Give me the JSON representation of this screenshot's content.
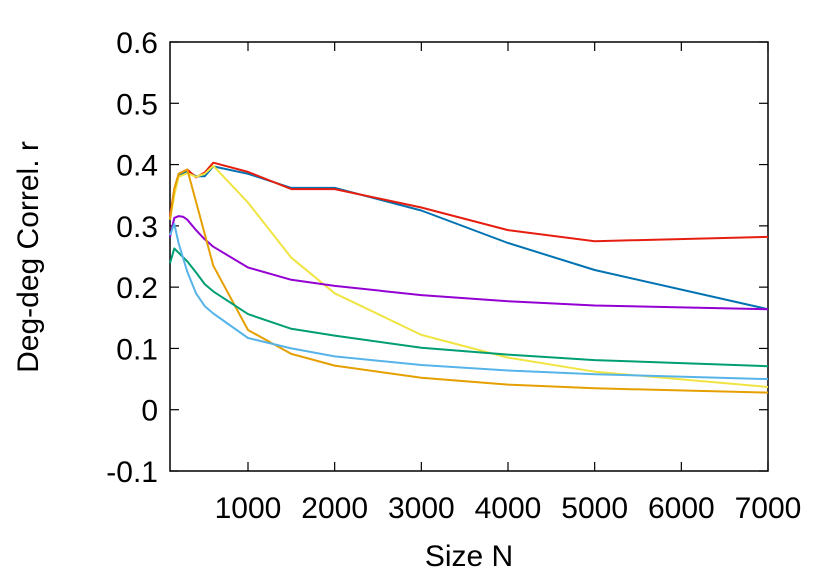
{
  "chart_data": {
    "type": "line",
    "xlabel": "Size N",
    "ylabel": "Deg-deg Correl. r",
    "xlim": [
      100,
      7000
    ],
    "ylim": [
      -0.1,
      0.6
    ],
    "x_ticks": [
      1000,
      2000,
      3000,
      4000,
      5000,
      6000,
      7000
    ],
    "y_ticks": [
      -0.1,
      0,
      0.1,
      0.2,
      0.3,
      0.4,
      0.5,
      0.6
    ],
    "y_tick_labels": [
      "-0.1",
      "0",
      "0.1",
      "0.2",
      "0.3",
      "0.4",
      "0.5",
      "0.6"
    ],
    "grid": false,
    "legend": "none",
    "series": [
      {
        "color": "#0072b2",
        "x": [
          100,
          150,
          200,
          300,
          400,
          500,
          600,
          1000,
          1500,
          2000,
          3000,
          4000,
          5000,
          7000
        ],
        "y": [
          0.315,
          0.355,
          0.383,
          0.388,
          0.381,
          0.381,
          0.397,
          0.385,
          0.362,
          0.362,
          0.325,
          0.272,
          0.228,
          0.164
        ]
      },
      {
        "color": "#e51e10",
        "x": [
          100,
          150,
          200,
          300,
          400,
          500,
          600,
          1000,
          1500,
          2000,
          3000,
          4000,
          5000,
          7000
        ],
        "y": [
          0.316,
          0.36,
          0.385,
          0.392,
          0.379,
          0.387,
          0.403,
          0.388,
          0.36,
          0.36,
          0.33,
          0.293,
          0.275,
          0.282
        ]
      },
      {
        "color": "#f0e442",
        "x": [
          100,
          150,
          200,
          300,
          400,
          500,
          600,
          1000,
          1500,
          2000,
          3000,
          4000,
          5000,
          7000
        ],
        "y": [
          0.31,
          0.35,
          0.38,
          0.386,
          0.38,
          0.385,
          0.398,
          0.338,
          0.248,
          0.19,
          0.122,
          0.085,
          0.062,
          0.037
        ]
      },
      {
        "color": "#9400d3",
        "x": [
          100,
          150,
          200,
          250,
          300,
          400,
          500,
          600,
          1000,
          1500,
          2000,
          3000,
          4000,
          5000,
          7000
        ],
        "y": [
          0.282,
          0.313,
          0.316,
          0.315,
          0.31,
          0.293,
          0.278,
          0.266,
          0.232,
          0.212,
          0.202,
          0.187,
          0.177,
          0.17,
          0.164
        ]
      },
      {
        "color": "#e69f00",
        "x": [
          100,
          150,
          200,
          300,
          600,
          1000,
          1500,
          2000,
          3000,
          4000,
          5000,
          7000
        ],
        "y": [
          0.31,
          0.36,
          0.385,
          0.392,
          0.235,
          0.13,
          0.091,
          0.072,
          0.052,
          0.041,
          0.035,
          0.028
        ]
      },
      {
        "color": "#009e73",
        "x": [
          100,
          150,
          200,
          300,
          400,
          500,
          600,
          1000,
          1500,
          2000,
          3000,
          4000,
          5000,
          7000
        ],
        "y": [
          0.239,
          0.263,
          0.256,
          0.242,
          0.224,
          0.205,
          0.193,
          0.156,
          0.132,
          0.121,
          0.101,
          0.09,
          0.081,
          0.071
        ]
      },
      {
        "color": "#56b4e9",
        "x": [
          100,
          150,
          200,
          300,
          400,
          500,
          600,
          1000,
          1500,
          2000,
          3000,
          4000,
          5000,
          7000
        ],
        "y": [
          0.285,
          0.303,
          0.271,
          0.225,
          0.19,
          0.169,
          0.157,
          0.117,
          0.1,
          0.087,
          0.073,
          0.064,
          0.058,
          0.05
        ]
      }
    ]
  }
}
